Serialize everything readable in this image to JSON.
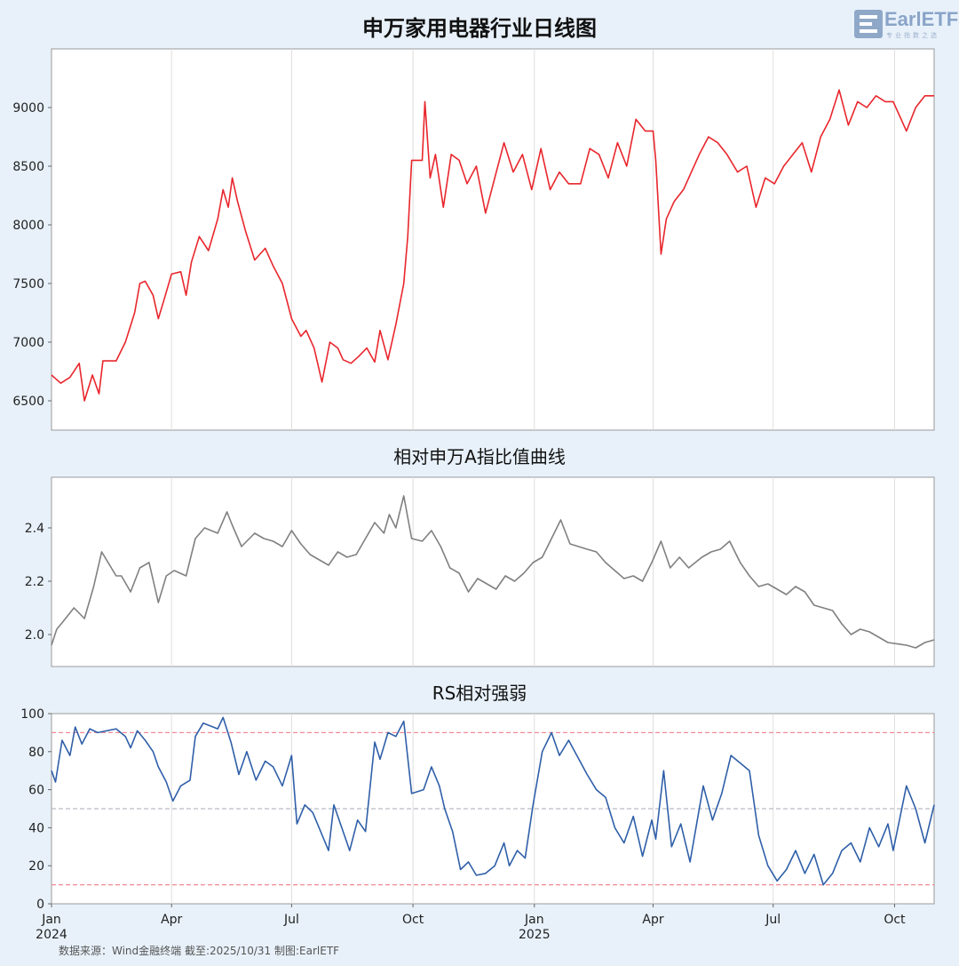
{
  "titles": {
    "main": "申万家用电器行业日线图",
    "ratio": "相对申万A指比值曲线",
    "rs": "RS相对强弱"
  },
  "logo": {
    "text": "EarlETF",
    "tagline": "专业指数之选"
  },
  "source": "数据来源：Wind金融终端 截至:2025/10/31 制图:EarlETF",
  "colors": {
    "price": "#e8262c",
    "ratio": "#808080",
    "rs": "#2f5fa8",
    "upper_band": "#f28a96",
    "lower_band": "#f28a96",
    "mid_band": "#b8bcc4"
  },
  "x_axis": {
    "ticks": [
      {
        "date": "2024-01-01",
        "label": "Jan",
        "sub": "2024"
      },
      {
        "date": "2024-04-01",
        "label": "Apr",
        "sub": ""
      },
      {
        "date": "2024-07-01",
        "label": "Jul",
        "sub": ""
      },
      {
        "date": "2024-10-01",
        "label": "Oct",
        "sub": ""
      },
      {
        "date": "2025-01-01",
        "label": "Jan",
        "sub": "2025"
      },
      {
        "date": "2025-04-01",
        "label": "Apr",
        "sub": ""
      },
      {
        "date": "2025-07-01",
        "label": "Jul",
        "sub": ""
      },
      {
        "date": "2025-10-01",
        "label": "Oct",
        "sub": ""
      }
    ],
    "range": [
      "2024-01-01",
      "2025-10-31"
    ]
  },
  "chart_data": [
    {
      "type": "line",
      "title": "申万家用电器行业日线图",
      "ylim": [
        6250,
        9500
      ],
      "yticks": [
        6500,
        7000,
        7500,
        8000,
        8500,
        9000
      ],
      "grid": "vertical",
      "series": [
        {
          "x": [
            "2024-01-01",
            "2024-01-08",
            "2024-01-15",
            "2024-01-22",
            "2024-01-26",
            "2024-02-01",
            "2024-02-06",
            "2024-02-09",
            "2024-02-19",
            "2024-02-26",
            "2024-03-04",
            "2024-03-08",
            "2024-03-12",
            "2024-03-18",
            "2024-03-22",
            "2024-03-26",
            "2024-04-01",
            "2024-04-08",
            "2024-04-12",
            "2024-04-16",
            "2024-04-22",
            "2024-04-29",
            "2024-05-06",
            "2024-05-10",
            "2024-05-14",
            "2024-05-17",
            "2024-05-21",
            "2024-05-27",
            "2024-06-03",
            "2024-06-11",
            "2024-06-17",
            "2024-06-24",
            "2024-07-01",
            "2024-07-08",
            "2024-07-12",
            "2024-07-18",
            "2024-07-24",
            "2024-07-30",
            "2024-08-05",
            "2024-08-09",
            "2024-08-15",
            "2024-08-21",
            "2024-08-27",
            "2024-09-02",
            "2024-09-06",
            "2024-09-12",
            "2024-09-18",
            "2024-09-24",
            "2024-09-27",
            "2024-09-30",
            "2024-10-08",
            "2024-10-10",
            "2024-10-14",
            "2024-10-18",
            "2024-10-24",
            "2024-10-30",
            "2024-11-05",
            "2024-11-11",
            "2024-11-18",
            "2024-11-25",
            "2024-12-02",
            "2024-12-09",
            "2024-12-16",
            "2024-12-23",
            "2024-12-30",
            "2025-01-06",
            "2025-01-13",
            "2025-01-20",
            "2025-01-27",
            "2025-02-05",
            "2025-02-12",
            "2025-02-19",
            "2025-02-26",
            "2025-03-05",
            "2025-03-12",
            "2025-03-19",
            "2025-03-26",
            "2025-04-01",
            "2025-04-03",
            "2025-04-07",
            "2025-04-11",
            "2025-04-17",
            "2025-04-24",
            "2025-05-06",
            "2025-05-13",
            "2025-05-20",
            "2025-05-27",
            "2025-06-04",
            "2025-06-11",
            "2025-06-18",
            "2025-06-25",
            "2025-07-02",
            "2025-07-09",
            "2025-07-16",
            "2025-07-23",
            "2025-07-30",
            "2025-08-06",
            "2025-08-13",
            "2025-08-20",
            "2025-08-27",
            "2025-09-03",
            "2025-09-10",
            "2025-09-17",
            "2025-09-24",
            "2025-09-30",
            "2025-10-10",
            "2025-10-17",
            "2025-10-24",
            "2025-10-31"
          ],
          "y": [
            6720,
            6650,
            6700,
            6820,
            6500,
            6720,
            6560,
            6840,
            6840,
            7000,
            7250,
            7500,
            7520,
            7400,
            7200,
            7350,
            7580,
            7600,
            7400,
            7680,
            7900,
            7780,
            8050,
            8300,
            8150,
            8400,
            8200,
            7950,
            7700,
            7800,
            7650,
            7500,
            7200,
            7050,
            7100,
            6950,
            6660,
            7000,
            6950,
            6850,
            6820,
            6880,
            6950,
            6830,
            7100,
            6850,
            7150,
            7500,
            7900,
            8550,
            8550,
            9050,
            8400,
            8600,
            8150,
            8600,
            8550,
            8350,
            8500,
            8100,
            8400,
            8700,
            8450,
            8600,
            8300,
            8650,
            8300,
            8450,
            8350,
            8350,
            8650,
            8600,
            8400,
            8700,
            8500,
            8900,
            8800,
            8800,
            8550,
            7750,
            8050,
            8200,
            8300,
            8600,
            8750,
            8700,
            8600,
            8450,
            8500,
            8150,
            8400,
            8350,
            8500,
            8600,
            8700,
            8450,
            8750,
            8900,
            9150,
            8850,
            9050,
            9000,
            9100,
            9050,
            9050,
            8800,
            9000,
            9100,
            9100
          ]
        }
      ]
    },
    {
      "type": "line",
      "title": "相对申万A指比值曲线",
      "ylim": [
        1.88,
        2.59
      ],
      "yticks": [
        2.0,
        2.2,
        2.4
      ],
      "grid": "vertical",
      "series": [
        {
          "x": [
            "2024-01-01",
            "2024-01-05",
            "2024-01-10",
            "2024-01-18",
            "2024-01-26",
            "2024-02-02",
            "2024-02-08",
            "2024-02-19",
            "2024-02-23",
            "2024-03-01",
            "2024-03-08",
            "2024-03-15",
            "2024-03-22",
            "2024-03-28",
            "2024-04-03",
            "2024-04-12",
            "2024-04-19",
            "2024-04-26",
            "2024-05-06",
            "2024-05-13",
            "2024-05-17",
            "2024-05-24",
            "2024-06-03",
            "2024-06-10",
            "2024-06-17",
            "2024-06-24",
            "2024-07-01",
            "2024-07-08",
            "2024-07-15",
            "2024-07-22",
            "2024-07-29",
            "2024-08-05",
            "2024-08-12",
            "2024-08-19",
            "2024-08-26",
            "2024-09-02",
            "2024-09-09",
            "2024-09-13",
            "2024-09-18",
            "2024-09-24",
            "2024-09-30",
            "2024-10-08",
            "2024-10-15",
            "2024-10-22",
            "2024-10-29",
            "2024-11-05",
            "2024-11-12",
            "2024-11-19",
            "2024-11-26",
            "2024-12-03",
            "2024-12-10",
            "2024-12-17",
            "2024-12-24",
            "2024-12-31",
            "2025-01-07",
            "2025-01-14",
            "2025-01-21",
            "2025-01-28",
            "2025-02-10",
            "2025-02-17",
            "2025-02-24",
            "2025-03-03",
            "2025-03-10",
            "2025-03-17",
            "2025-03-24",
            "2025-03-31",
            "2025-04-07",
            "2025-04-14",
            "2025-04-21",
            "2025-04-28",
            "2025-05-08",
            "2025-05-15",
            "2025-05-22",
            "2025-05-29",
            "2025-06-06",
            "2025-06-13",
            "2025-06-20",
            "2025-06-27",
            "2025-07-04",
            "2025-07-11",
            "2025-07-18",
            "2025-07-25",
            "2025-08-01",
            "2025-08-08",
            "2025-08-15",
            "2025-08-22",
            "2025-08-29",
            "2025-09-05",
            "2025-09-12",
            "2025-09-19",
            "2025-09-26",
            "2025-10-10",
            "2025-10-17",
            "2025-10-24",
            "2025-10-31"
          ],
          "y": [
            1.96,
            2.02,
            2.05,
            2.1,
            2.06,
            2.18,
            2.31,
            2.22,
            2.22,
            2.16,
            2.25,
            2.27,
            2.12,
            2.22,
            2.24,
            2.22,
            2.36,
            2.4,
            2.38,
            2.46,
            2.41,
            2.33,
            2.38,
            2.36,
            2.35,
            2.33,
            2.39,
            2.34,
            2.3,
            2.28,
            2.26,
            2.31,
            2.29,
            2.3,
            2.36,
            2.42,
            2.38,
            2.45,
            2.4,
            2.52,
            2.36,
            2.35,
            2.39,
            2.33,
            2.25,
            2.23,
            2.16,
            2.21,
            2.19,
            2.17,
            2.22,
            2.2,
            2.23,
            2.27,
            2.29,
            2.36,
            2.43,
            2.34,
            2.32,
            2.31,
            2.27,
            2.24,
            2.21,
            2.22,
            2.2,
            2.27,
            2.35,
            2.25,
            2.29,
            2.25,
            2.29,
            2.31,
            2.32,
            2.35,
            2.27,
            2.22,
            2.18,
            2.19,
            2.17,
            2.15,
            2.18,
            2.16,
            2.11,
            2.1,
            2.09,
            2.04,
            2.0,
            2.02,
            2.01,
            1.99,
            1.97,
            1.96,
            1.95,
            1.97,
            1.98
          ]
        }
      ]
    },
    {
      "type": "line",
      "title": "RS相对强弱",
      "ylim": [
        0,
        100
      ],
      "yticks": [
        0,
        20,
        40,
        60,
        80,
        100
      ],
      "reference_lines": [
        90,
        50,
        10
      ],
      "grid": "vertical",
      "series": [
        {
          "x": [
            "2024-01-01",
            "2024-01-04",
            "2024-01-09",
            "2024-01-15",
            "2024-01-19",
            "2024-01-24",
            "2024-01-30",
            "2024-02-05",
            "2024-02-19",
            "2024-02-26",
            "2024-03-01",
            "2024-03-06",
            "2024-03-12",
            "2024-03-18",
            "2024-03-22",
            "2024-03-28",
            "2024-04-02",
            "2024-04-08",
            "2024-04-15",
            "2024-04-19",
            "2024-04-25",
            "2024-05-06",
            "2024-05-10",
            "2024-05-16",
            "2024-05-22",
            "2024-05-28",
            "2024-06-04",
            "2024-06-11",
            "2024-06-17",
            "2024-06-24",
            "2024-07-01",
            "2024-07-05",
            "2024-07-11",
            "2024-07-17",
            "2024-07-23",
            "2024-07-29",
            "2024-08-02",
            "2024-08-08",
            "2024-08-14",
            "2024-08-20",
            "2024-08-26",
            "2024-09-02",
            "2024-09-06",
            "2024-09-12",
            "2024-09-18",
            "2024-09-24",
            "2024-09-30",
            "2024-10-09",
            "2024-10-15",
            "2024-10-21",
            "2024-10-25",
            "2024-10-31",
            "2024-11-06",
            "2024-11-12",
            "2024-11-18",
            "2024-11-25",
            "2024-12-02",
            "2024-12-09",
            "2024-12-13",
            "2024-12-19",
            "2024-12-25",
            "2024-12-31",
            "2025-01-07",
            "2025-01-14",
            "2025-01-20",
            "2025-01-27",
            "2025-02-10",
            "2025-02-17",
            "2025-02-24",
            "2025-03-03",
            "2025-03-10",
            "2025-03-17",
            "2025-03-24",
            "2025-03-31",
            "2025-04-03",
            "2025-04-09",
            "2025-04-15",
            "2025-04-22",
            "2025-04-29",
            "2025-05-09",
            "2025-05-16",
            "2025-05-23",
            "2025-05-30",
            "2025-06-06",
            "2025-06-13",
            "2025-06-20",
            "2025-06-27",
            "2025-07-04",
            "2025-07-11",
            "2025-07-18",
            "2025-07-25",
            "2025-08-01",
            "2025-08-08",
            "2025-08-15",
            "2025-08-22",
            "2025-08-29",
            "2025-09-05",
            "2025-09-12",
            "2025-09-19",
            "2025-09-26",
            "2025-09-30",
            "2025-10-10",
            "2025-10-17",
            "2025-10-24",
            "2025-10-31"
          ],
          "y": [
            70,
            64,
            86,
            78,
            93,
            84,
            92,
            90,
            92,
            88,
            82,
            91,
            86,
            80,
            72,
            64,
            54,
            62,
            65,
            88,
            95,
            92,
            98,
            85,
            68,
            80,
            65,
            75,
            72,
            62,
            78,
            42,
            52,
            48,
            38,
            28,
            52,
            40,
            28,
            44,
            38,
            85,
            76,
            90,
            88,
            96,
            58,
            60,
            72,
            62,
            50,
            38,
            18,
            22,
            15,
            16,
            20,
            32,
            20,
            28,
            24,
            52,
            80,
            90,
            78,
            86,
            68,
            60,
            56,
            40,
            32,
            46,
            25,
            44,
            34,
            70,
            30,
            42,
            22,
            62,
            44,
            58,
            78,
            74,
            70,
            36,
            20,
            12,
            18,
            28,
            16,
            26,
            10,
            16,
            28,
            32,
            22,
            40,
            30,
            42,
            28,
            62,
            50,
            32,
            52
          ]
        }
      ]
    }
  ]
}
